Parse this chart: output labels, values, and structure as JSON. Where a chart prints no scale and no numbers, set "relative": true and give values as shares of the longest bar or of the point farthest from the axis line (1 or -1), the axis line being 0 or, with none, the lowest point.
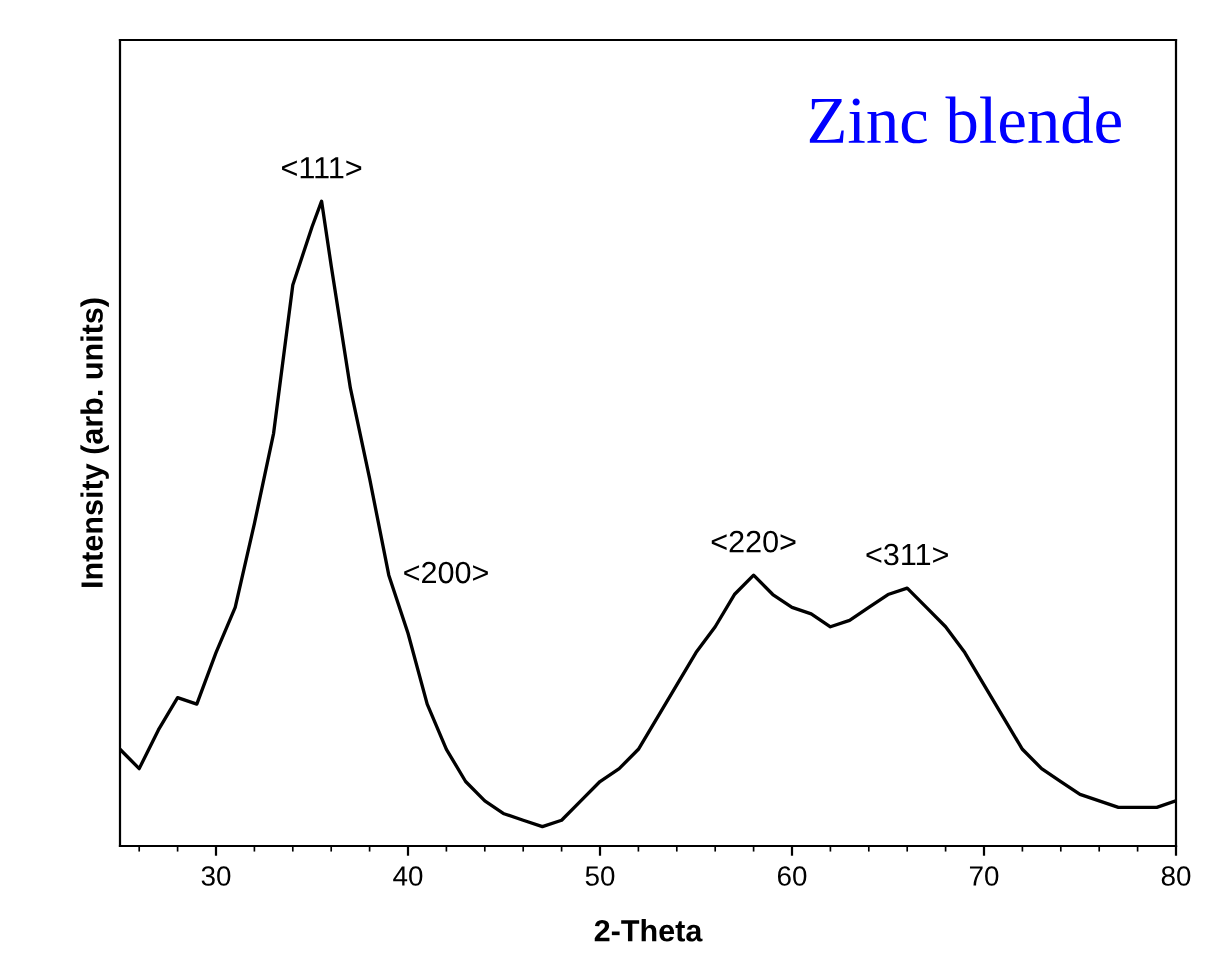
{
  "chart_data": {
    "type": "line",
    "xlabel": "2-Theta",
    "ylabel": "Intensity (arb. units)",
    "relative": true,
    "xlim": [
      25,
      80
    ],
    "xticks": [
      30,
      40,
      50,
      60,
      70,
      80
    ],
    "tick_labels": "x",
    "grid": false,
    "legend": false,
    "marker": "none",
    "line_style": "solid",
    "x": [
      25,
      26,
      27,
      28,
      29,
      30,
      31,
      32,
      33,
      34,
      35,
      35.5,
      36,
      37,
      38,
      39,
      40,
      41,
      42,
      43,
      44,
      45,
      46,
      47,
      48,
      49,
      50,
      51,
      52,
      53,
      54,
      55,
      56,
      57,
      58,
      59,
      60,
      61,
      62,
      63,
      64,
      65,
      66,
      67,
      68,
      69,
      70,
      71,
      72,
      73,
      74,
      75,
      76,
      77,
      78,
      79,
      80
    ],
    "series": [
      {
        "color": "#000000",
        "values": [
          0.15,
          0.12,
          0.18,
          0.23,
          0.22,
          0.3,
          0.37,
          0.5,
          0.64,
          0.87,
          0.96,
          1.0,
          0.9,
          0.71,
          0.57,
          0.42,
          0.33,
          0.22,
          0.15,
          0.1,
          0.07,
          0.05,
          0.04,
          0.03,
          0.04,
          0.07,
          0.1,
          0.12,
          0.15,
          0.2,
          0.25,
          0.3,
          0.34,
          0.39,
          0.42,
          0.39,
          0.37,
          0.36,
          0.34,
          0.35,
          0.37,
          0.39,
          0.4,
          0.37,
          0.34,
          0.3,
          0.25,
          0.2,
          0.15,
          0.12,
          0.1,
          0.08,
          0.07,
          0.06,
          0.06,
          0.06,
          0.07
        ]
      }
    ],
    "annotations": [
      {
        "text": "<111>",
        "x": 35.5,
        "y": 1.0
      },
      {
        "text": "<200>",
        "x": 39,
        "y": 0.42
      },
      {
        "text": "<220>",
        "x": 58,
        "y": 0.42
      },
      {
        "text": "<311>",
        "x": 66,
        "y": 0.4
      },
      "Zinc blende"
    ]
  }
}
